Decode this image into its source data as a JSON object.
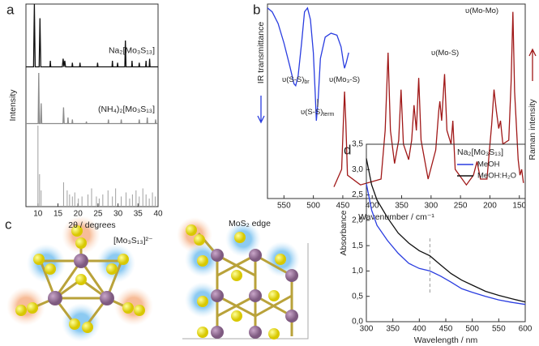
{
  "figure": {
    "panel_labels": [
      "a",
      "b",
      "c",
      "d"
    ],
    "structures": [
      "[Mo₃S₁₃]²⁻",
      "MoS₂ edge"
    ]
  },
  "chart_data": [
    {
      "type": "line",
      "xlabel": "2θ / degrees",
      "ylabel": "Intensity",
      "xlim": [
        7,
        40
      ],
      "ylim": [
        0,
        100
      ],
      "xticks": [
        10,
        15,
        20,
        25,
        30,
        35,
        40
      ],
      "series": [
        {
          "name": "Na₂[Mo₃S₁₃]",
          "color": "#111111",
          "x": [
            7,
            8.9,
            9.1,
            9.3,
            10.3,
            10.5,
            10.7,
            13.0,
            13.1,
            13.2,
            16.1,
            16.3,
            16.5,
            16.7,
            16.9,
            18.5,
            18.6,
            18.7,
            20.4,
            20.5,
            20.6,
            24.8,
            24.9,
            25,
            28.5,
            28.6,
            28.7,
            29.8,
            29.9,
            30,
            31.7,
            31.85,
            32,
            33.4,
            33.5,
            33.6,
            35.2,
            35.3,
            35.4,
            36.9,
            37,
            37.1,
            37.8,
            37.9,
            38,
            40
          ],
          "values": [
            69,
            69,
            100,
            69,
            69,
            93,
            69,
            69,
            72,
            69,
            69,
            73,
            69,
            72,
            69,
            69,
            71,
            69,
            69,
            71,
            69,
            69,
            71,
            69,
            69,
            72,
            69,
            69,
            71,
            69,
            69,
            82,
            69,
            69,
            72,
            69,
            69,
            71,
            69,
            69,
            72,
            69,
            69,
            73,
            69,
            69
          ]
        },
        {
          "name": "(NH₄)₂[Mo₃S₁₃]",
          "color": "#8c8c8c",
          "x": [
            7,
            10.05,
            10.2,
            10.35,
            10.65,
            10.8,
            10.95,
            16.25,
            16.4,
            16.55,
            17.4,
            17.5,
            17.6,
            18.5,
            18.6,
            18.7,
            22,
            22.1,
            22.2,
            27.5,
            27.6,
            27.7,
            30.7,
            30.8,
            30.9,
            35.2,
            35.3,
            35.4,
            37.2,
            37.3,
            37.4,
            39.3,
            39.4,
            39.5,
            40
          ],
          "values": [
            41,
            41,
            66,
            41,
            41,
            51,
            41,
            41,
            49,
            41,
            41,
            44,
            41,
            41,
            43,
            41,
            41,
            42,
            41,
            41,
            43,
            41,
            41,
            43,
            41,
            41,
            43,
            41,
            41,
            44,
            41,
            41,
            43,
            41,
            41
          ]
        }
      ],
      "sticks": {
        "color": "#a0a0a0",
        "x": [
          10.0,
          10.4,
          10.8,
          16.4,
          17.3,
          17.9,
          18.6,
          19.2,
          20.1,
          21.0,
          22.5,
          23.4,
          24.6,
          25.3,
          26.2,
          27.5,
          28.6,
          29.4,
          30.8,
          32.0,
          32.9,
          33.6,
          34.5,
          35.3,
          36.2,
          37.0,
          37.8,
          38.6,
          39.3
        ],
        "values": [
          40,
          16,
          8,
          12,
          8,
          6,
          5,
          7,
          4,
          5,
          6,
          9,
          5,
          4,
          6,
          8,
          5,
          9,
          5,
          7,
          4,
          6,
          8,
          5,
          9,
          6,
          4,
          7,
          5
        ]
      }
    },
    {
      "type": "line",
      "xlabel": "Wavenumber / cm⁻¹",
      "ylabel": "IR transmittance",
      "y2label": "Raman intensity",
      "xlim": [
        578,
        140
      ],
      "ylim": [
        0,
        100
      ],
      "y2lim": [
        0,
        100
      ],
      "xticks": [
        550,
        500,
        450,
        400,
        350,
        300,
        250,
        200,
        150
      ],
      "series": [
        {
          "name": null,
          "color": "#2a3de0",
          "x": [
            578,
            570,
            560,
            550,
            540,
            533,
            530,
            526,
            520,
            515,
            510,
            505,
            500,
            497,
            495,
            492,
            488,
            480,
            470,
            460,
            453,
            449,
            447,
            444,
            440
          ],
          "values": [
            98,
            96,
            90,
            80,
            68,
            59,
            58,
            63,
            80,
            96,
            98,
            92,
            75,
            55,
            40,
            50,
            72,
            83,
            85,
            84,
            78,
            70,
            67,
            70,
            75
          ]
        },
        {
          "name": null,
          "color": "#a01818",
          "axis": "y2",
          "x": [
            465,
            452,
            449,
            447,
            445,
            442,
            420,
            385,
            378,
            373,
            369,
            362,
            355,
            351,
            347,
            338,
            333,
            329,
            325,
            321,
            317,
            305,
            292,
            287,
            285,
            282,
            277,
            273,
            266,
            263,
            259,
            240,
            228,
            222,
            216,
            205,
            197,
            193,
            189,
            185,
            182,
            178,
            168,
            164,
            161,
            158,
            152,
            149,
            146,
            143
          ],
          "values": [
            6,
            15,
            40,
            55,
            40,
            12,
            7,
            10,
            35,
            75,
            35,
            18,
            30,
            56,
            28,
            20,
            30,
            48,
            35,
            62,
            30,
            10,
            25,
            45,
            50,
            40,
            64,
            35,
            28,
            40,
            15,
            7,
            12,
            19,
            10,
            10,
            38,
            56,
            45,
            36,
            40,
            28,
            30,
            60,
            96,
            55,
            20,
            12,
            15,
            8
          ]
        }
      ],
      "annotations": [
        {
          "text": "υ(S-S)",
          "sub": "br"
        },
        {
          "text": "υ(S-S)",
          "sub": "term"
        },
        {
          "text": "υ(Mo₃-S)"
        },
        {
          "text": "υ(Mo-S)"
        },
        {
          "text": "υ(Mo-Mo)"
        }
      ]
    },
    {
      "type": "line",
      "xlabel": "Wavelength / nm",
      "ylabel": "Absorbance",
      "legend_title": "Na₂[Mo₃S₁₃]",
      "legend": "upper right",
      "xlim": [
        300,
        600
      ],
      "ylim": [
        0,
        3.5
      ],
      "xticks": [
        300,
        350,
        400,
        450,
        500,
        550,
        600
      ],
      "yticks": [
        {
          "value": 0,
          "label": "0,0"
        },
        {
          "value": 0.5,
          "label": "0,5"
        },
        {
          "value": 1,
          "label": "1,0"
        },
        {
          "value": 1.5,
          "label": "1,5"
        },
        {
          "value": 2,
          "label": "2,0"
        },
        {
          "value": 2.5,
          "label": "2,5"
        },
        {
          "value": 3,
          "label": "3,0"
        },
        {
          "value": 3.5,
          "label": "3,5"
        }
      ],
      "vline": 420,
      "series": [
        {
          "name": "MeOH",
          "color": "#2a3de0",
          "x": [
            300,
            310,
            320,
            340,
            360,
            380,
            400,
            420,
            440,
            460,
            480,
            500,
            525,
            550,
            575,
            600
          ],
          "values": [
            2.72,
            2.2,
            1.9,
            1.6,
            1.35,
            1.15,
            1.05,
            1.0,
            0.9,
            0.78,
            0.65,
            0.58,
            0.5,
            0.43,
            0.38,
            0.34
          ]
        },
        {
          "name": "MeOH:H₂O",
          "color": "#111111",
          "x": [
            300,
            310,
            320,
            340,
            360,
            380,
            400,
            420,
            440,
            460,
            480,
            500,
            525,
            550,
            575,
            600
          ],
          "values": [
            3.22,
            2.7,
            2.4,
            2.05,
            1.75,
            1.55,
            1.4,
            1.3,
            1.12,
            0.95,
            0.82,
            0.72,
            0.6,
            0.52,
            0.45,
            0.39
          ]
        }
      ]
    }
  ]
}
